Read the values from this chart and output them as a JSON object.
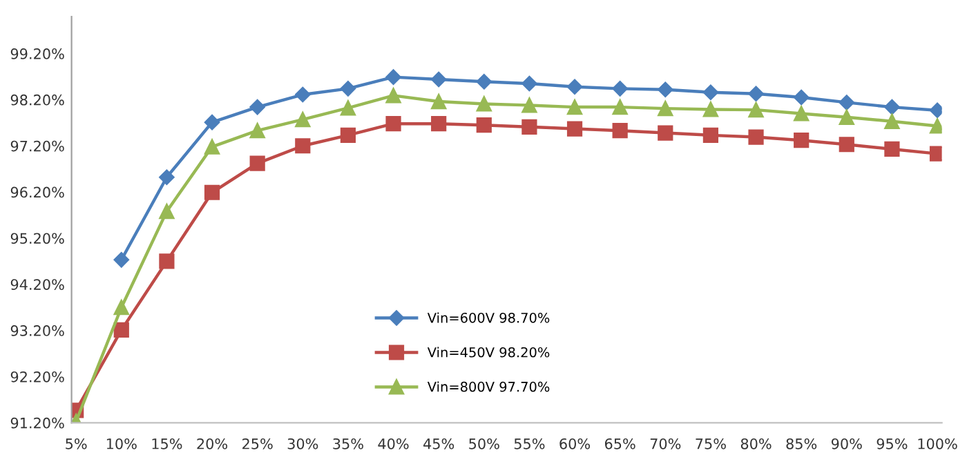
{
  "chart_data": {
    "type": "line",
    "categories": [
      "5%",
      "10%",
      "15%",
      "20%",
      "25%",
      "30%",
      "35%",
      "40%",
      "45%",
      "50%",
      "55%",
      "60%",
      "65%",
      "70%",
      "75%",
      "80%",
      "85%",
      "90%",
      "95%",
      "100%"
    ],
    "series": [
      {
        "name": "Vin=600V 98.70%",
        "color": "#4a7ebb",
        "marker": "diamond",
        "values": [
          null,
          94.73,
          96.52,
          97.71,
          98.04,
          98.31,
          98.44,
          98.69,
          98.64,
          98.59,
          98.55,
          98.48,
          98.44,
          98.42,
          98.36,
          98.33,
          98.25,
          98.14,
          98.04,
          97.97
        ]
      },
      {
        "name": "Vin=450V 98.20%",
        "color": "#be4b48",
        "marker": "square",
        "values": [
          91.47,
          93.21,
          94.7,
          96.19,
          96.82,
          97.2,
          97.43,
          97.68,
          97.68,
          97.65,
          97.61,
          97.57,
          97.53,
          97.48,
          97.43,
          97.39,
          97.32,
          97.23,
          97.13,
          97.03
        ]
      },
      {
        "name": "Vin=800V 97.70%",
        "color": "#98b954",
        "marker": "triangle",
        "values": [
          91.23,
          93.7,
          95.78,
          97.18,
          97.53,
          97.77,
          98.02,
          98.29,
          98.16,
          98.11,
          98.08,
          98.04,
          98.04,
          98.01,
          97.99,
          97.98,
          97.9,
          97.82,
          97.73,
          97.63
        ]
      }
    ],
    "ylim": [
      91.2,
      100.0
    ],
    "yticks": [
      {
        "value": 91.2,
        "label": "91.20%"
      },
      {
        "value": 92.2,
        "label": "92.20%"
      },
      {
        "value": 93.2,
        "label": "93.20%"
      },
      {
        "value": 94.2,
        "label": "94.20%"
      },
      {
        "value": 95.2,
        "label": "95.20%"
      },
      {
        "value": 96.2,
        "label": "96.20%"
      },
      {
        "value": 97.2,
        "label": "97.20%"
      },
      {
        "value": 98.2,
        "label": "98.20%"
      },
      {
        "value": 99.2,
        "label": "99.20%"
      }
    ],
    "grid": false,
    "legend": "bottom",
    "line_style": "solid"
  }
}
